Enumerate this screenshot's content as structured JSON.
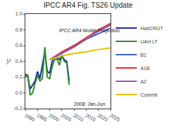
{
  "chart_data": {
    "type": "line",
    "title": "IPCC AR4 Fig. TS26 Update",
    "y_label": "°C",
    "annotations": [
      "IPCC AR4 Model Projection",
      "2008: Jan-Jun"
    ],
    "xlim": [
      1990,
      2025
    ],
    "xticks": [
      1990,
      1995,
      2000,
      2005,
      2010,
      2015,
      2020,
      2025
    ],
    "ylim": [
      -0.2,
      1.0
    ],
    "yticks": [
      {
        "value": -0.2,
        "label": "-0.2"
      },
      {
        "value": 0,
        "label": "0.0"
      },
      {
        "value": 0.2,
        "label": "0.2"
      },
      {
        "value": 0.4,
        "label": "0.4"
      },
      {
        "value": 0.6,
        "label": "0.6"
      },
      {
        "value": 0.8,
        "label": "0.8"
      },
      {
        "value": 1.0,
        "label": "1.0"
      }
    ],
    "grid": false,
    "legend": "right",
    "series": [
      {
        "name": "HadCRUT",
        "color": "#1c2a9c",
        "x": [
          1990,
          1991,
          1992,
          1993,
          1994,
          1995,
          1996,
          1997,
          1998,
          1999,
          2000,
          2001,
          2002,
          2003,
          2004,
          2005,
          2006,
          2007,
          2008
        ],
        "values": [
          0.24,
          0.2,
          0.05,
          0.1,
          0.15,
          0.27,
          0.18,
          0.35,
          0.52,
          0.27,
          0.25,
          0.4,
          0.45,
          0.45,
          0.42,
          0.47,
          0.42,
          0.4,
          0.15
        ]
      },
      {
        "name": "UAH LT",
        "color": "#2e8b2e",
        "x": [
          1990,
          1991,
          1992,
          1993,
          1994,
          1995,
          1996,
          1997,
          1998,
          1999,
          2000,
          2001,
          2002,
          2003,
          2004,
          2005,
          2006,
          2007,
          2008
        ],
        "values": [
          0.2,
          0.23,
          -0.03,
          0.0,
          0.12,
          0.22,
          0.15,
          0.18,
          0.58,
          0.2,
          0.18,
          0.33,
          0.42,
          0.43,
          0.35,
          0.47,
          0.4,
          0.38,
          0.1
        ]
      },
      {
        "name": "B1",
        "color": "#3a64c8",
        "x": [
          2000,
          2005,
          2010,
          2015,
          2020,
          2025
        ],
        "values": [
          0.42,
          0.5,
          0.6,
          0.68,
          0.75,
          0.82
        ]
      },
      {
        "name": "A1B",
        "color": "#e03030",
        "x": [
          2000,
          2005,
          2010,
          2015,
          2020,
          2025
        ],
        "values": [
          0.42,
          0.52,
          0.6,
          0.7,
          0.8,
          0.88
        ]
      },
      {
        "name": "A2",
        "color": "#8a5cb0",
        "x": [
          2000,
          2005,
          2010,
          2015,
          2020,
          2025
        ],
        "values": [
          0.42,
          0.5,
          0.58,
          0.68,
          0.78,
          0.86
        ]
      },
      {
        "name": "Commit",
        "color": "#e8c000",
        "x": [
          2000,
          2005,
          2010,
          2015,
          2020,
          2025
        ],
        "values": [
          0.42,
          0.47,
          0.5,
          0.52,
          0.55,
          0.57
        ]
      }
    ]
  }
}
